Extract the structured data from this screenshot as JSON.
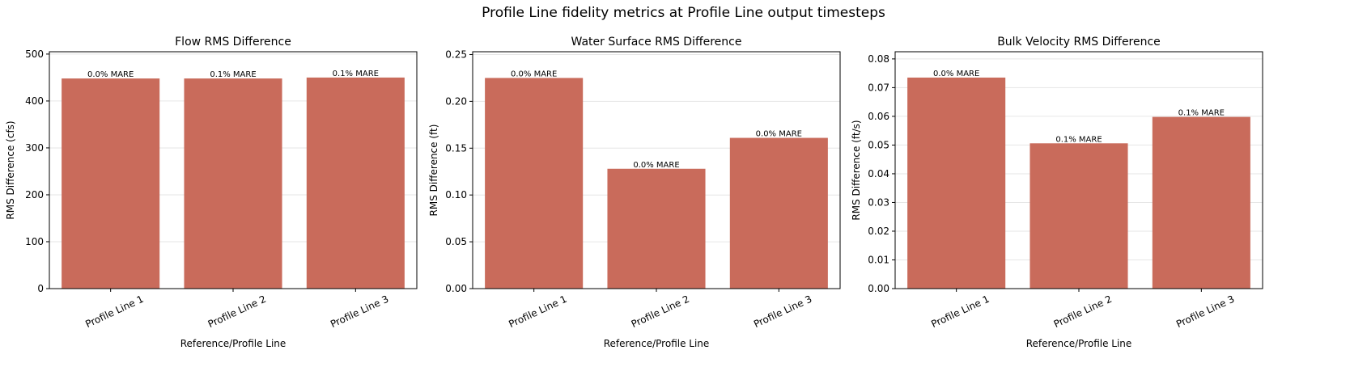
{
  "figure": {
    "suptitle": "Profile Line fidelity metrics at Profile Line output timesteps",
    "bar_color": "#c96b5b"
  },
  "chart_data": [
    {
      "type": "bar",
      "title": "Flow RMS Difference",
      "xlabel": "Reference/Profile Line",
      "ylabel": "RMS Difference (cfs)",
      "categories": [
        "Profile Line 1",
        "Profile Line 2",
        "Profile Line 3"
      ],
      "values": [
        448,
        448,
        450
      ],
      "annotations": [
        "0.0% MARE",
        "0.1% MARE",
        "0.1% MARE"
      ],
      "ylim": [
        0,
        505
      ],
      "yticks": [
        0,
        100,
        200,
        300,
        400,
        500
      ],
      "ytick_labels": [
        "0",
        "100",
        "200",
        "300",
        "400",
        "500"
      ],
      "grid": "y"
    },
    {
      "type": "bar",
      "title": "Water Surface RMS Difference",
      "xlabel": "Reference/Profile Line",
      "ylabel": "RMS Difference (ft)",
      "categories": [
        "Profile Line 1",
        "Profile Line 2",
        "Profile Line 3"
      ],
      "values": [
        0.225,
        0.128,
        0.161
      ],
      "annotations": [
        "0.0% MARE",
        "0.0% MARE",
        "0.0% MARE"
      ],
      "ylim": [
        0,
        0.253
      ],
      "yticks": [
        0,
        0.05,
        0.1,
        0.15,
        0.2,
        0.25
      ],
      "ytick_labels": [
        "0.00",
        "0.05",
        "0.10",
        "0.15",
        "0.20",
        "0.25"
      ],
      "grid": "y"
    },
    {
      "type": "bar",
      "title": "Bulk Velocity RMS Difference",
      "xlabel": "Reference/Profile Line",
      "ylabel": "RMS Difference (ft/s)",
      "categories": [
        "Profile Line 1",
        "Profile Line 2",
        "Profile Line 3"
      ],
      "values": [
        0.0735,
        0.0506,
        0.0598
      ],
      "annotations": [
        "0.0% MARE",
        "0.1% MARE",
        "0.1% MARE"
      ],
      "ylim": [
        0,
        0.0825
      ],
      "yticks": [
        0,
        0.01,
        0.02,
        0.03,
        0.04,
        0.05,
        0.06,
        0.07,
        0.08
      ],
      "ytick_labels": [
        "0.00",
        "0.01",
        "0.02",
        "0.03",
        "0.04",
        "0.05",
        "0.06",
        "0.07",
        "0.08"
      ],
      "grid": "y"
    }
  ]
}
